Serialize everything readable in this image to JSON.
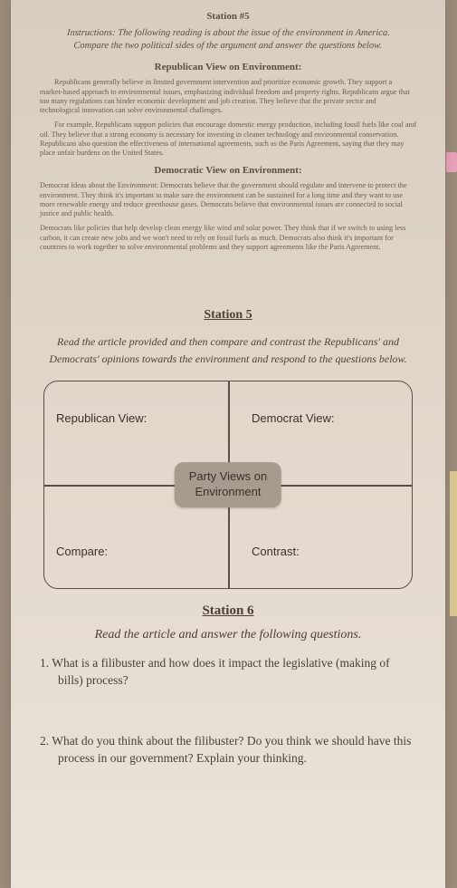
{
  "station_head": "Station #5",
  "instructions": "Instructions: The following reading is about the issue of the environment in America. Compare the two political sides of the argument and answer the questions below.",
  "rep_head": "Republican View on Environment:",
  "rep_p1": "Republicans generally believe in limited government intervention and prioritize economic growth. They support a market-based approach to environmental issues, emphasizing individual freedom and property rights. Republicans argue that too many regulations can hinder economic development and job creation. They believe that the private sector and technological innovation can solve environmental challenges.",
  "rep_p2": "For example, Republicans support policies that encourage domestic energy production, including fossil fuels like coal and oil. They believe that a strong economy is necessary for investing in cleaner technology and environmental conservation. Republicans also question the effectiveness of international agreements, such as the Paris Agreement, saying that they may place unfair burdens on the United States.",
  "dem_head": "Democratic View on Environment:",
  "dem_p1": "Democrat Ideas about the Environment: Democrats believe that the government should regulate and intervene to protect the environment. They think it's important to make sure the environment can be sustained for a long time and they want to use more renewable energy and reduce greenhouse gases. Democrats believe that environmental issues are connected to social justice and public health.",
  "dem_p2": "Democrats like policies that help develop clean energy like wind and solar power. They think that if we switch to using less carbon, it can create new jobs and we won't need to rely on fossil fuels as much. Democrats also think it's important for countries to work together to solve environmental problems and they support agreements like the Paris Agreement.",
  "s5_title": "Station 5",
  "s5_instr": "Read the article provided and then compare and contrast the Republicans' and Democrats' opinions towards the environment and respond to the questions below.",
  "quad": {
    "q1": "Republican View:",
    "q2": "Democrat View:",
    "q3": "Compare:",
    "q4": "Contrast:",
    "center_l1": "Party Views on",
    "center_l2": "Environment"
  },
  "s6_title": "Station 6",
  "s6_instr": "Read the article and answer the following questions.",
  "q_1": "1.  What is a filibuster and how does it impact the legislative (making of bills) process?",
  "q_2": "2. What do you think about the filibuster? Do you think we should have this process in our government? Explain your thinking.",
  "colors": {
    "bg": "#9a8a7a",
    "paper": "#e0d6c8",
    "text": "#5a4f44",
    "pill": "#a89b8d"
  }
}
